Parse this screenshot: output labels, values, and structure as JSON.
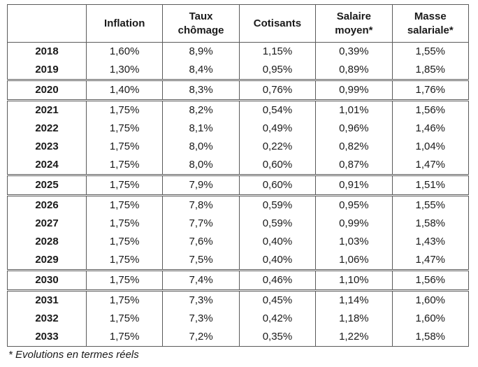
{
  "table": {
    "headers": [
      "",
      "Inflation",
      "Taux chômage",
      "Cotisants",
      "Salaire moyen*",
      "Masse salariale*"
    ],
    "groups": [
      {
        "rows": [
          {
            "year": "2018",
            "inflation": "1,60%",
            "chomage": "8,9%",
            "cotisants": "1,15%",
            "salaire": "0,39%",
            "masse": "1,55%"
          },
          {
            "year": "2019",
            "inflation": "1,30%",
            "chomage": "8,4%",
            "cotisants": "0,95%",
            "salaire": "0,89%",
            "masse": "1,85%"
          }
        ]
      },
      {
        "rows": [
          {
            "year": "2020",
            "inflation": "1,40%",
            "chomage": "8,3%",
            "cotisants": "0,76%",
            "salaire": "0,99%",
            "masse": "1,76%"
          }
        ]
      },
      {
        "rows": [
          {
            "year": "2021",
            "inflation": "1,75%",
            "chomage": "8,2%",
            "cotisants": "0,54%",
            "salaire": "1,01%",
            "masse": "1,56%"
          },
          {
            "year": "2022",
            "inflation": "1,75%",
            "chomage": "8,1%",
            "cotisants": "0,49%",
            "salaire": "0,96%",
            "masse": "1,46%"
          },
          {
            "year": "2023",
            "inflation": "1,75%",
            "chomage": "8,0%",
            "cotisants": "0,22%",
            "salaire": "0,82%",
            "masse": "1,04%"
          },
          {
            "year": "2024",
            "inflation": "1,75%",
            "chomage": "8,0%",
            "cotisants": "0,60%",
            "salaire": "0,87%",
            "masse": "1,47%"
          }
        ]
      },
      {
        "rows": [
          {
            "year": "2025",
            "inflation": "1,75%",
            "chomage": "7,9%",
            "cotisants": "0,60%",
            "salaire": "0,91%",
            "masse": "1,51%"
          }
        ]
      },
      {
        "rows": [
          {
            "year": "2026",
            "inflation": "1,75%",
            "chomage": "7,8%",
            "cotisants": "0,59%",
            "salaire": "0,95%",
            "masse": "1,55%"
          },
          {
            "year": "2027",
            "inflation": "1,75%",
            "chomage": "7,7%",
            "cotisants": "0,59%",
            "salaire": "0,99%",
            "masse": "1,58%"
          },
          {
            "year": "2028",
            "inflation": "1,75%",
            "chomage": "7,6%",
            "cotisants": "0,40%",
            "salaire": "1,03%",
            "masse": "1,43%"
          },
          {
            "year": "2029",
            "inflation": "1,75%",
            "chomage": "7,5%",
            "cotisants": "0,40%",
            "salaire": "1,06%",
            "masse": "1,47%"
          }
        ]
      },
      {
        "rows": [
          {
            "year": "2030",
            "inflation": "1,75%",
            "chomage": "7,4%",
            "cotisants": "0,46%",
            "salaire": "1,10%",
            "masse": "1,56%"
          }
        ]
      },
      {
        "rows": [
          {
            "year": "2031",
            "inflation": "1,75%",
            "chomage": "7,3%",
            "cotisants": "0,45%",
            "salaire": "1,14%",
            "masse": "1,60%"
          },
          {
            "year": "2032",
            "inflation": "1,75%",
            "chomage": "7,3%",
            "cotisants": "0,42%",
            "salaire": "1,18%",
            "masse": "1,60%"
          },
          {
            "year": "2033",
            "inflation": "1,75%",
            "chomage": "7,2%",
            "cotisants": "0,35%",
            "salaire": "1,22%",
            "masse": "1,58%"
          }
        ]
      }
    ]
  },
  "footnote": "* Evolutions en termes réels"
}
